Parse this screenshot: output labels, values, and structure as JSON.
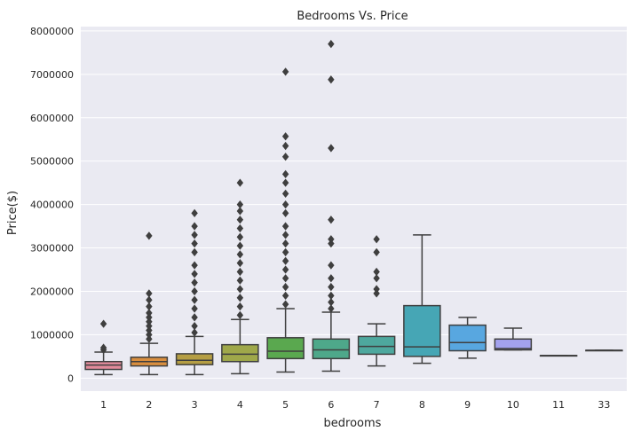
{
  "chart_data": {
    "type": "box",
    "title": "Bedrooms Vs. Price",
    "xlabel": "bedrooms",
    "ylabel": "Price($)",
    "ylim": [
      -300000,
      8100000
    ],
    "yticks": [
      0,
      1000000,
      2000000,
      3000000,
      4000000,
      5000000,
      6000000,
      7000000,
      8000000
    ],
    "ytick_labels": [
      "0",
      "1000000",
      "2000000",
      "3000000",
      "4000000",
      "5000000",
      "6000000",
      "7000000",
      "8000000"
    ],
    "grid": true,
    "categories": [
      "1",
      "2",
      "3",
      "4",
      "5",
      "6",
      "7",
      "8",
      "9",
      "10",
      "11",
      "33"
    ],
    "colors": [
      "#e28b9b",
      "#d98e3f",
      "#b59e44",
      "#9fa84a",
      "#5aa84f",
      "#4ea88a",
      "#4ea89e",
      "#46a6b5",
      "#58a7e0",
      "#a3a2ee",
      "#dc8fe3",
      "#e79ac8"
    ],
    "boxes": [
      {
        "category": "1",
        "whisker_low": 80000,
        "q1": 200000,
        "median": 300000,
        "q3": 380000,
        "whisker_high": 600000,
        "outliers": [
          650000,
          700000,
          1250000
        ]
      },
      {
        "category": "2",
        "whisker_low": 80000,
        "q1": 280000,
        "median": 380000,
        "q3": 480000,
        "whisker_high": 800000,
        "outliers": [
          900000,
          1000000,
          1100000,
          1200000,
          1300000,
          1400000,
          1500000,
          1650000,
          1800000,
          1950000,
          3280000
        ]
      },
      {
        "category": "3",
        "whisker_low": 80000,
        "q1": 310000,
        "median": 410000,
        "q3": 560000,
        "whisker_high": 960000,
        "outliers": [
          1050000,
          1200000,
          1400000,
          1600000,
          1800000,
          2000000,
          2200000,
          2400000,
          2600000,
          2900000,
          3100000,
          3300000,
          3500000,
          3800000
        ]
      },
      {
        "category": "4",
        "whisker_low": 100000,
        "q1": 380000,
        "median": 550000,
        "q3": 770000,
        "whisker_high": 1350000,
        "outliers": [
          1450000,
          1650000,
          1850000,
          2050000,
          2250000,
          2450000,
          2650000,
          2850000,
          3050000,
          3250000,
          3450000,
          3650000,
          3850000,
          4000000,
          4500000
        ]
      },
      {
        "category": "5",
        "whisker_low": 140000,
        "q1": 450000,
        "median": 620000,
        "q3": 930000,
        "whisker_high": 1600000,
        "outliers": [
          1700000,
          1900000,
          2100000,
          2300000,
          2500000,
          2700000,
          2900000,
          3100000,
          3300000,
          3500000,
          3800000,
          4000000,
          4250000,
          4500000,
          4700000,
          5100000,
          5350000,
          5570000,
          7060000
        ]
      },
      {
        "category": "6",
        "whisker_low": 160000,
        "q1": 450000,
        "median": 650000,
        "q3": 900000,
        "whisker_high": 1520000,
        "outliers": [
          1600000,
          1750000,
          1900000,
          2100000,
          2300000,
          2600000,
          3100000,
          3200000,
          3650000,
          5300000,
          6880000,
          7700000
        ]
      },
      {
        "category": "7",
        "whisker_low": 280000,
        "q1": 550000,
        "median": 730000,
        "q3": 960000,
        "whisker_high": 1250000,
        "outliers": [
          1950000,
          2050000,
          2300000,
          2450000,
          2900000,
          3200000
        ]
      },
      {
        "category": "8",
        "whisker_low": 340000,
        "q1": 500000,
        "median": 720000,
        "q3": 1670000,
        "whisker_high": 3300000,
        "outliers": []
      },
      {
        "category": "9",
        "whisker_low": 460000,
        "q1": 630000,
        "median": 820000,
        "q3": 1220000,
        "whisker_high": 1400000,
        "outliers": []
      },
      {
        "category": "10",
        "whisker_low": 650000,
        "q1": 650000,
        "median": 680000,
        "q3": 900000,
        "whisker_high": 1150000,
        "outliers": []
      },
      {
        "category": "11",
        "whisker_low": 520000,
        "q1": 520000,
        "median": 520000,
        "q3": 520000,
        "whisker_high": 520000,
        "outliers": []
      },
      {
        "category": "33",
        "whisker_low": 640000,
        "q1": 640000,
        "median": 640000,
        "q3": 640000,
        "whisker_high": 640000,
        "outliers": []
      }
    ]
  }
}
